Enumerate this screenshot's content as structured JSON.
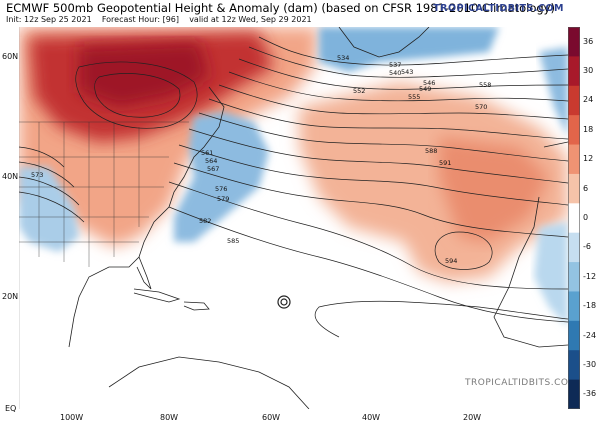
{
  "header": {
    "title": "ECMWF 500mb Geopotential Height & Anomaly (dam) (based on CFSR 1981-2010 Climatology)",
    "init": "Init: 12z Sep 25 2021",
    "forecast_hour": "Forecast Hour: [96]",
    "valid": "valid at 12z Wed, Sep 29 2021",
    "brand": "TROPICALTIDBITS.COM"
  },
  "map": {
    "lat_labels": [
      "60N",
      "40N",
      "20N",
      "EQ"
    ],
    "lon_labels": [
      "100W",
      "80W",
      "60W",
      "40W",
      "20W"
    ],
    "contour_labels": [
      "534",
      "537",
      "540",
      "543",
      "546",
      "549",
      "552",
      "555",
      "558",
      "561",
      "564",
      "567",
      "570",
      "573",
      "576",
      "579",
      "582",
      "585",
      "588",
      "591",
      "594"
    ],
    "watermark": "TROPICALTIDBITS.COM"
  },
  "colorbar": {
    "labels": [
      "36",
      "30",
      "24",
      "18",
      "12",
      "6",
      "0",
      "-6",
      "-12",
      "-18",
      "-24",
      "-30",
      "-36"
    ],
    "colors": [
      "#7a0a2e",
      "#a8192a",
      "#c93a2f",
      "#e2654a",
      "#ef9373",
      "#f6c3a9",
      "#ffffff",
      "#c6def0",
      "#93c3e2",
      "#5aa1cf",
      "#2f79b2",
      "#1b4f8a",
      "#0e2a56"
    ]
  }
}
